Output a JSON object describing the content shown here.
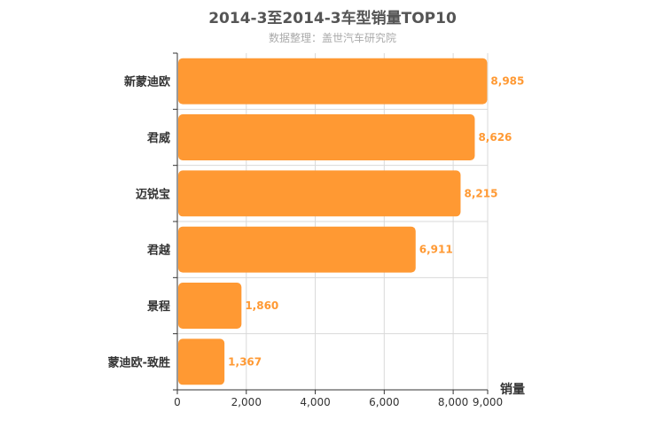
{
  "chart_data": {
    "type": "bar",
    "orientation": "horizontal",
    "title": "2014-3至2014-3车型销量TOP10",
    "subtitle": "数据整理：盖世汽车研究院",
    "categories": [
      "新蒙迪欧",
      "君威",
      "迈锐宝",
      "君越",
      "景程",
      "蒙迪欧-致胜"
    ],
    "values": [
      8985,
      8626,
      8215,
      6911,
      1860,
      1367
    ],
    "value_labels": [
      "8,985",
      "8,626",
      "8,215",
      "6,911",
      "1,860",
      "1,367"
    ],
    "xlabel": "销量",
    "ylabel": "",
    "xlim": [
      0,
      9000
    ],
    "x_ticks": [
      0,
      2000,
      4000,
      6000,
      8000,
      9000
    ],
    "x_tick_labels": [
      "0",
      "2,000",
      "4,000",
      "6,000",
      "8,000",
      "9,000"
    ],
    "grid": true,
    "colors": {
      "bar": "#ff9933",
      "value_label": "#ff9933",
      "grid": "#d9d9d9",
      "axis": "#333333"
    }
  }
}
